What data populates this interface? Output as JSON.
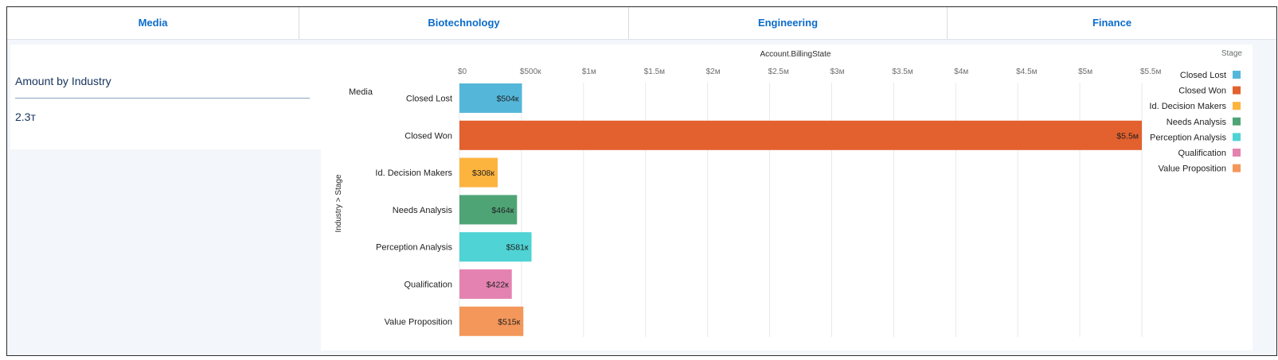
{
  "tabs": [
    {
      "label": "Media"
    },
    {
      "label": "Biotechnology"
    },
    {
      "label": "Engineering"
    },
    {
      "label": "Finance"
    }
  ],
  "summary": {
    "title": "Amount by Industry",
    "value": "2.3т"
  },
  "chart_data": {
    "type": "bar",
    "orientation": "horizontal",
    "title": "Account.BillingState",
    "ylabel": "Industry > Stage",
    "group_label": "Media",
    "categories": [
      "Closed Lost",
      "Closed Won",
      "Id. Decision Makers",
      "Needs Analysis",
      "Perception Analysis",
      "Qualification",
      "Value Proposition"
    ],
    "values": [
      504000,
      5500000,
      308000,
      464000,
      581000,
      422000,
      515000
    ],
    "value_labels": [
      "$504к",
      "$5.5м",
      "$308к",
      "$464к",
      "$581к",
      "$422к",
      "$515к"
    ],
    "colors": [
      "#54b7da",
      "#e2612f",
      "#fdb43f",
      "#4fa476",
      "#4fd3d4",
      "#e483b1",
      "#f4975a"
    ],
    "xlim": [
      0,
      5500000
    ],
    "x_ticks": [
      0,
      500000,
      1000000,
      1500000,
      2000000,
      2500000,
      3000000,
      3500000,
      4000000,
      4500000,
      5000000,
      5500000
    ],
    "x_tick_labels": [
      "$0",
      "$500к",
      "$1м",
      "$1.5м",
      "$2м",
      "$2.5м",
      "$3м",
      "$3.5м",
      "$4м",
      "$4.5м",
      "$5м",
      "$5.5м"
    ],
    "grid": true,
    "legend": {
      "title": "Stage",
      "position": "right",
      "entries": [
        {
          "name": "Closed Lost",
          "color": "#54b7da"
        },
        {
          "name": "Closed Won",
          "color": "#e2612f"
        },
        {
          "name": "Id. Decision Makers",
          "color": "#fdb43f"
        },
        {
          "name": "Needs Analysis",
          "color": "#4fa476"
        },
        {
          "name": "Perception Analysis",
          "color": "#4fd3d4"
        },
        {
          "name": "Qualification",
          "color": "#e483b1"
        },
        {
          "name": "Value Proposition",
          "color": "#f4975a"
        }
      ]
    }
  }
}
